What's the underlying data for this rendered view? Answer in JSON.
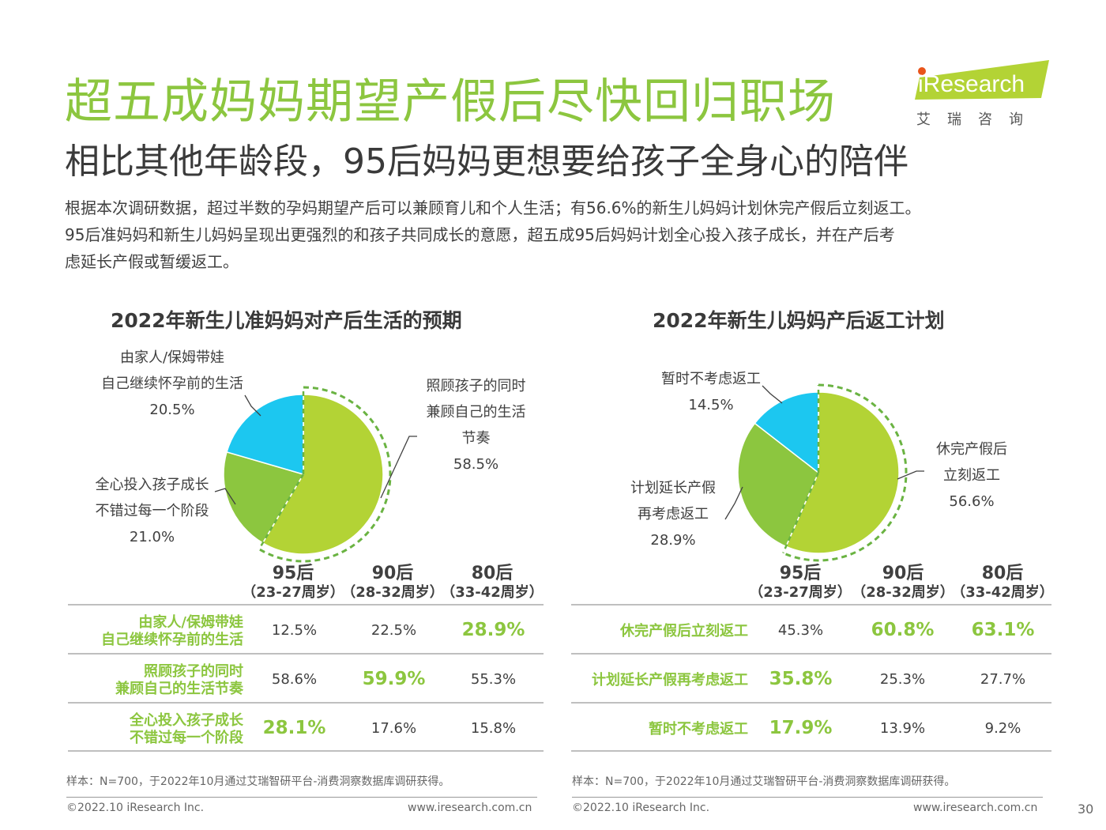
{
  "header": {
    "title": "超五成妈妈期望产假后尽快回归职场",
    "subtitle": "相比其他年龄段，95后妈妈更想要给孩子全身心的陪伴",
    "logo_text": "iResearch",
    "logo_sub": "艾瑞咨询"
  },
  "intro": [
    "根据本次调研数据，超过半数的孕妈期望产后可以兼顾育儿和个人生活；有56.6%的新生儿妈妈计划休完产假后立刻返工。",
    "95后准妈妈和新生儿妈妈呈现出更强烈的和孩子共同成长的意愿，超五成95后妈妈计划全心投入孩子成长，并在产后考",
    "虑延长产假或暂缓返工。"
  ],
  "colors": {
    "green_light": "#b3d335",
    "green_mid": "#8cc63f",
    "blue": "#1cc7f0",
    "dash": "#6ab342"
  },
  "chart_data": [
    {
      "type": "pie",
      "title": "2022年新生儿准妈妈对产后生活的预期",
      "slices": [
        {
          "label_lines": [
            "照顾孩子的同时",
            "兼顾自己的生活",
            "节奏"
          ],
          "value": 58.5,
          "value_text": "58.5%"
        },
        {
          "label_lines": [
            "全心投入孩子成长",
            "不错过每一个阶段"
          ],
          "value": 21.0,
          "value_text": "21.0%"
        },
        {
          "label_lines": [
            "由家人/保姆带娃",
            "自己继续怀孕前的生活"
          ],
          "value": 20.5,
          "value_text": "20.5%"
        }
      ]
    },
    {
      "type": "pie",
      "title": "2022年新生儿妈妈产后返工计划",
      "slices": [
        {
          "label_lines": [
            "休完产假后",
            "立刻返工"
          ],
          "value": 56.6,
          "value_text": "56.6%"
        },
        {
          "label_lines": [
            "计划延长产假",
            "再考虑返工"
          ],
          "value": 28.9,
          "value_text": "28.9%"
        },
        {
          "label_lines": [
            "暂时不考虑返工"
          ],
          "value": 14.5,
          "value_text": "14.5%"
        }
      ]
    },
    {
      "type": "table",
      "columns": [
        {
          "a": "95后",
          "b": "（23-27周岁）"
        },
        {
          "a": "90后",
          "b": "（28-32周岁）"
        },
        {
          "a": "80后",
          "b": "（33-42周岁）"
        }
      ],
      "rows": [
        {
          "label_lines": [
            "由家人/保姆带娃",
            "自己继续怀孕前的生活"
          ],
          "values": [
            "12.5%",
            "22.5%",
            "28.9%"
          ],
          "highlight": 2
        },
        {
          "label_lines": [
            "照顾孩子的同时",
            "兼顾自己的生活节奏"
          ],
          "values": [
            "58.6%",
            "59.9%",
            "55.3%"
          ],
          "highlight": 1
        },
        {
          "label_lines": [
            "全心投入孩子成长",
            "不错过每一个阶段"
          ],
          "values": [
            "28.1%",
            "17.6%",
            "15.8%"
          ],
          "highlight": 0
        }
      ]
    },
    {
      "type": "table",
      "columns": [
        {
          "a": "95后",
          "b": "（23-27周岁）"
        },
        {
          "a": "90后",
          "b": "（28-32周岁）"
        },
        {
          "a": "80后",
          "b": "（33-42周岁）"
        }
      ],
      "rows": [
        {
          "label_lines": [
            "休完产假后立刻返工"
          ],
          "values": [
            "45.3%",
            "60.8%",
            "63.1%"
          ],
          "highlight": [
            1,
            2
          ]
        },
        {
          "label_lines": [
            "计划延长产假再考虑返工"
          ],
          "values": [
            "35.8%",
            "25.3%",
            "27.7%"
          ],
          "highlight": [
            0
          ]
        },
        {
          "label_lines": [
            "暂时不考虑返工"
          ],
          "values": [
            "17.9%",
            "13.9%",
            "9.2%"
          ],
          "highlight": [
            0
          ]
        }
      ]
    }
  ],
  "notes": {
    "left": "样本：N=700，于2022年10月通过艾瑞智研平台-消费洞察数据库调研获得。",
    "right": "样本：N=700，于2022年10月通过艾瑞智研平台-消费洞察数据库调研获得。"
  },
  "footer": {
    "copyright": "©2022.10 iResearch Inc.",
    "url": "www.iresearch.com.cn",
    "page": "30"
  }
}
